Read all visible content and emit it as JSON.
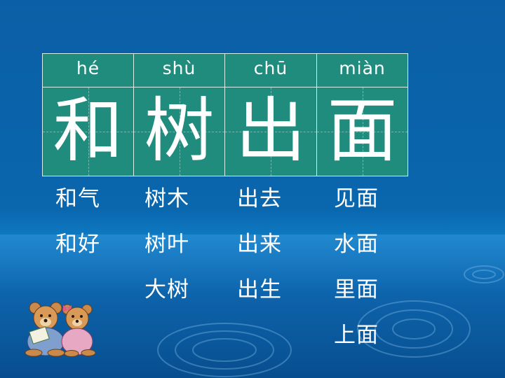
{
  "columns": [
    {
      "pinyin": "hé",
      "hanzi": "和",
      "words": [
        "和气",
        "和好"
      ]
    },
    {
      "pinyin": "shù",
      "hanzi": "树",
      "words": [
        "树木",
        "树叶",
        "大树"
      ]
    },
    {
      "pinyin": "chū",
      "hanzi": "出",
      "words": [
        "出去",
        "出来",
        "出生"
      ]
    },
    {
      "pinyin": "miàn",
      "hanzi": "面",
      "words": [
        "见面",
        "水面",
        "里面",
        "上面"
      ]
    }
  ],
  "icons": {
    "decoration": "teddy-bears-reading"
  }
}
